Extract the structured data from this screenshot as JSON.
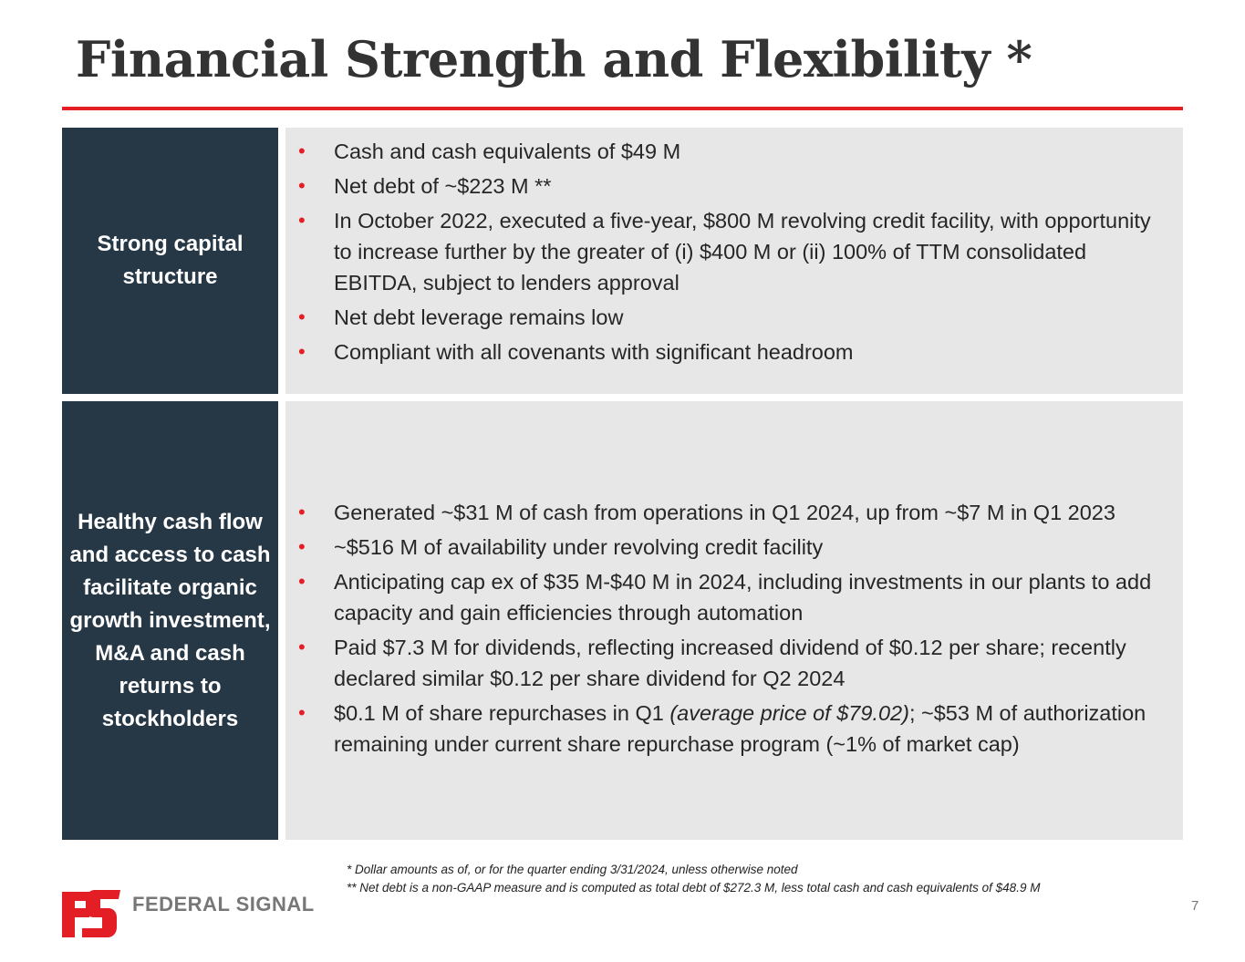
{
  "slide": {
    "title": "Financial Strength and Flexibility *",
    "page_number": "7"
  },
  "sections": [
    {
      "label": "Strong capital structure",
      "bullets": [
        "Cash and cash equivalents of $49 M",
        "Net debt of ~$223 M **",
        "In October 2022, executed a five-year, $800 M revolving credit facility, with opportunity to increase further by the greater of (i) $400 M or (ii) 100% of TTM consolidated EBITDA, subject to lenders approval",
        "Net debt leverage remains low",
        "Compliant with all covenants with significant headroom"
      ]
    },
    {
      "label": "Healthy cash flow and access to cash facilitate organic growth investment, M&A and cash returns to stockholders",
      "bullets": [
        "Generated ~$31 M of cash from operations in Q1 2024, up from ~$7 M in Q1 2023",
        "~$516 M of availability under revolving credit facility",
        "Anticipating cap ex of $35 M-$40 M in 2024, including investments in our plants to add capacity and gain efficiencies through automation",
        "Paid $7.3 M for dividends, reflecting increased dividend of $0.12 per share; recently declared similar $0.12 per share dividend for Q2 2024"
      ],
      "last_bullet": {
        "before": "$0.1 M of share repurchases in Q1 ",
        "italic": "(average price of $79.02)",
        "after": "; ~$53 M of authorization remaining under current share repurchase program (~1% of market cap)"
      }
    }
  ],
  "footnotes": [
    "* Dollar amounts as of, or for the quarter ending 3/31/2024, unless otherwise noted",
    "** Net debt is a non-GAAP measure and is computed as total debt of $272.3 M, less total cash and cash equivalents of $48.9 M"
  ],
  "logo": {
    "text": "FEDERAL SIGNAL",
    "icon": "federal-signal-fs-logo-icon",
    "color": "#e31e25"
  },
  "colors": {
    "accent": "#e31e25",
    "label_bg": "#263746",
    "content_bg": "#e7e7e7"
  }
}
